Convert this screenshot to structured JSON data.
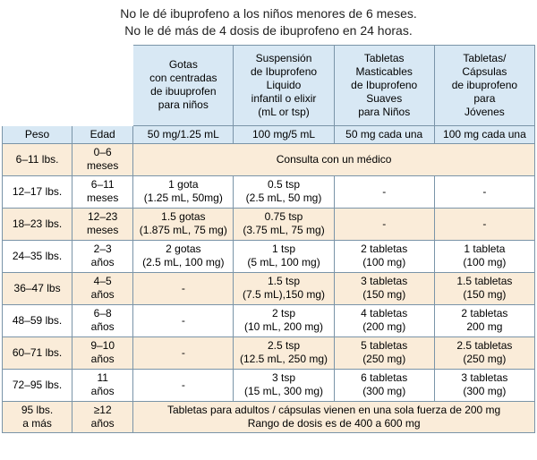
{
  "colors": {
    "blue": "#d8e8f4",
    "beige": "#faecd9",
    "white": "#ffffff",
    "border": "#7a94a8",
    "text": "#222222"
  },
  "warnings": {
    "line1": "No le dé ibuprofeno a los niños menores de 6 meses.",
    "line2": "No le dé más de 4 dosis de ibuprofeno en 24 horas."
  },
  "product_headers": {
    "c1": "Gotas\ncon centradas\nde ibuuprofen\npara niños",
    "c2": "Suspensión\nde Ibuprofeno\nLiquido\ninfantil o elixir\n(mL or tsp)",
    "c3": "Tabletas\nMasticables\nde Ibuprofeno\nSuaves\npara Niños",
    "c4": "Tabletas/\nCápsulas\nde ibuprofeno\npara\nJóvenes"
  },
  "subheaders": {
    "weight": "Peso",
    "age": "Edad",
    "c1": "50 mg/1.25 mL",
    "c2": "100 mg/5 mL",
    "c3": "50 mg cada una",
    "c4": "100 mg cada una"
  },
  "consult_doctor": "Consulta con un médico",
  "adult_note": "Tabletas para adultos / cápsulas vienen en una sola fuerza de 200 mg\nRango de dosis es de 400 a 600 mg",
  "rows": [
    {
      "weight": "6–11 lbs.",
      "age": "0–6\nmeses"
    },
    {
      "weight": "12–17 lbs.",
      "age": "6–11\nmeses",
      "c1": "1 gota\n(1.25 mL, 50mg)",
      "c2": "0.5 tsp\n(2.5 mL, 50 mg)",
      "c3": "-",
      "c4": "-"
    },
    {
      "weight": "18–23 lbs.",
      "age": "12–23\nmeses",
      "c1": "1.5 gotas\n(1.875 mL, 75 mg)",
      "c2": "0.75 tsp\n(3.75 mL, 75 mg)",
      "c3": "-",
      "c4": "-"
    },
    {
      "weight": "24–35 lbs.",
      "age": "2–3\naños",
      "c1": "2 gotas\n(2.5 mL, 100 mg)",
      "c2": "1 tsp\n(5 mL, 100 mg)",
      "c3": "2 tabletas\n(100 mg)",
      "c4": "1 tableta\n(100 mg)"
    },
    {
      "weight": "36–47 lbs",
      "age": "4–5\naños",
      "c1": "-",
      "c2": "1.5 tsp\n(7.5 mL),150 mg)",
      "c3": "3 tabletas\n(150 mg)",
      "c4": "1.5 tabletas\n(150 mg)"
    },
    {
      "weight": "48–59 lbs.",
      "age": "6–8\naños",
      "c1": "-",
      "c2": "2 tsp\n(10 mL, 200 mg)",
      "c3": "4 tabletas\n(200 mg)",
      "c4": "2 tabletas\n200 mg"
    },
    {
      "weight": "60–71 lbs.",
      "age": "9–10\naños",
      "c1": "-",
      "c2": "2.5 tsp\n(12.5 mL, 250 mg)",
      "c3": "5 tabletas\n(250 mg)",
      "c4": "2.5 tabletas\n(250 mg)"
    },
    {
      "weight": "72–95 lbs.",
      "age": "11\naños",
      "c1": "-",
      "c2": "3 tsp\n(15 mL, 300 mg)",
      "c3": "6 tabletas\n(300 mg)",
      "c4": "3 tabletas\n(300 mg)"
    },
    {
      "weight": "95 lbs.\na más",
      "age": "≥12\naños"
    }
  ]
}
